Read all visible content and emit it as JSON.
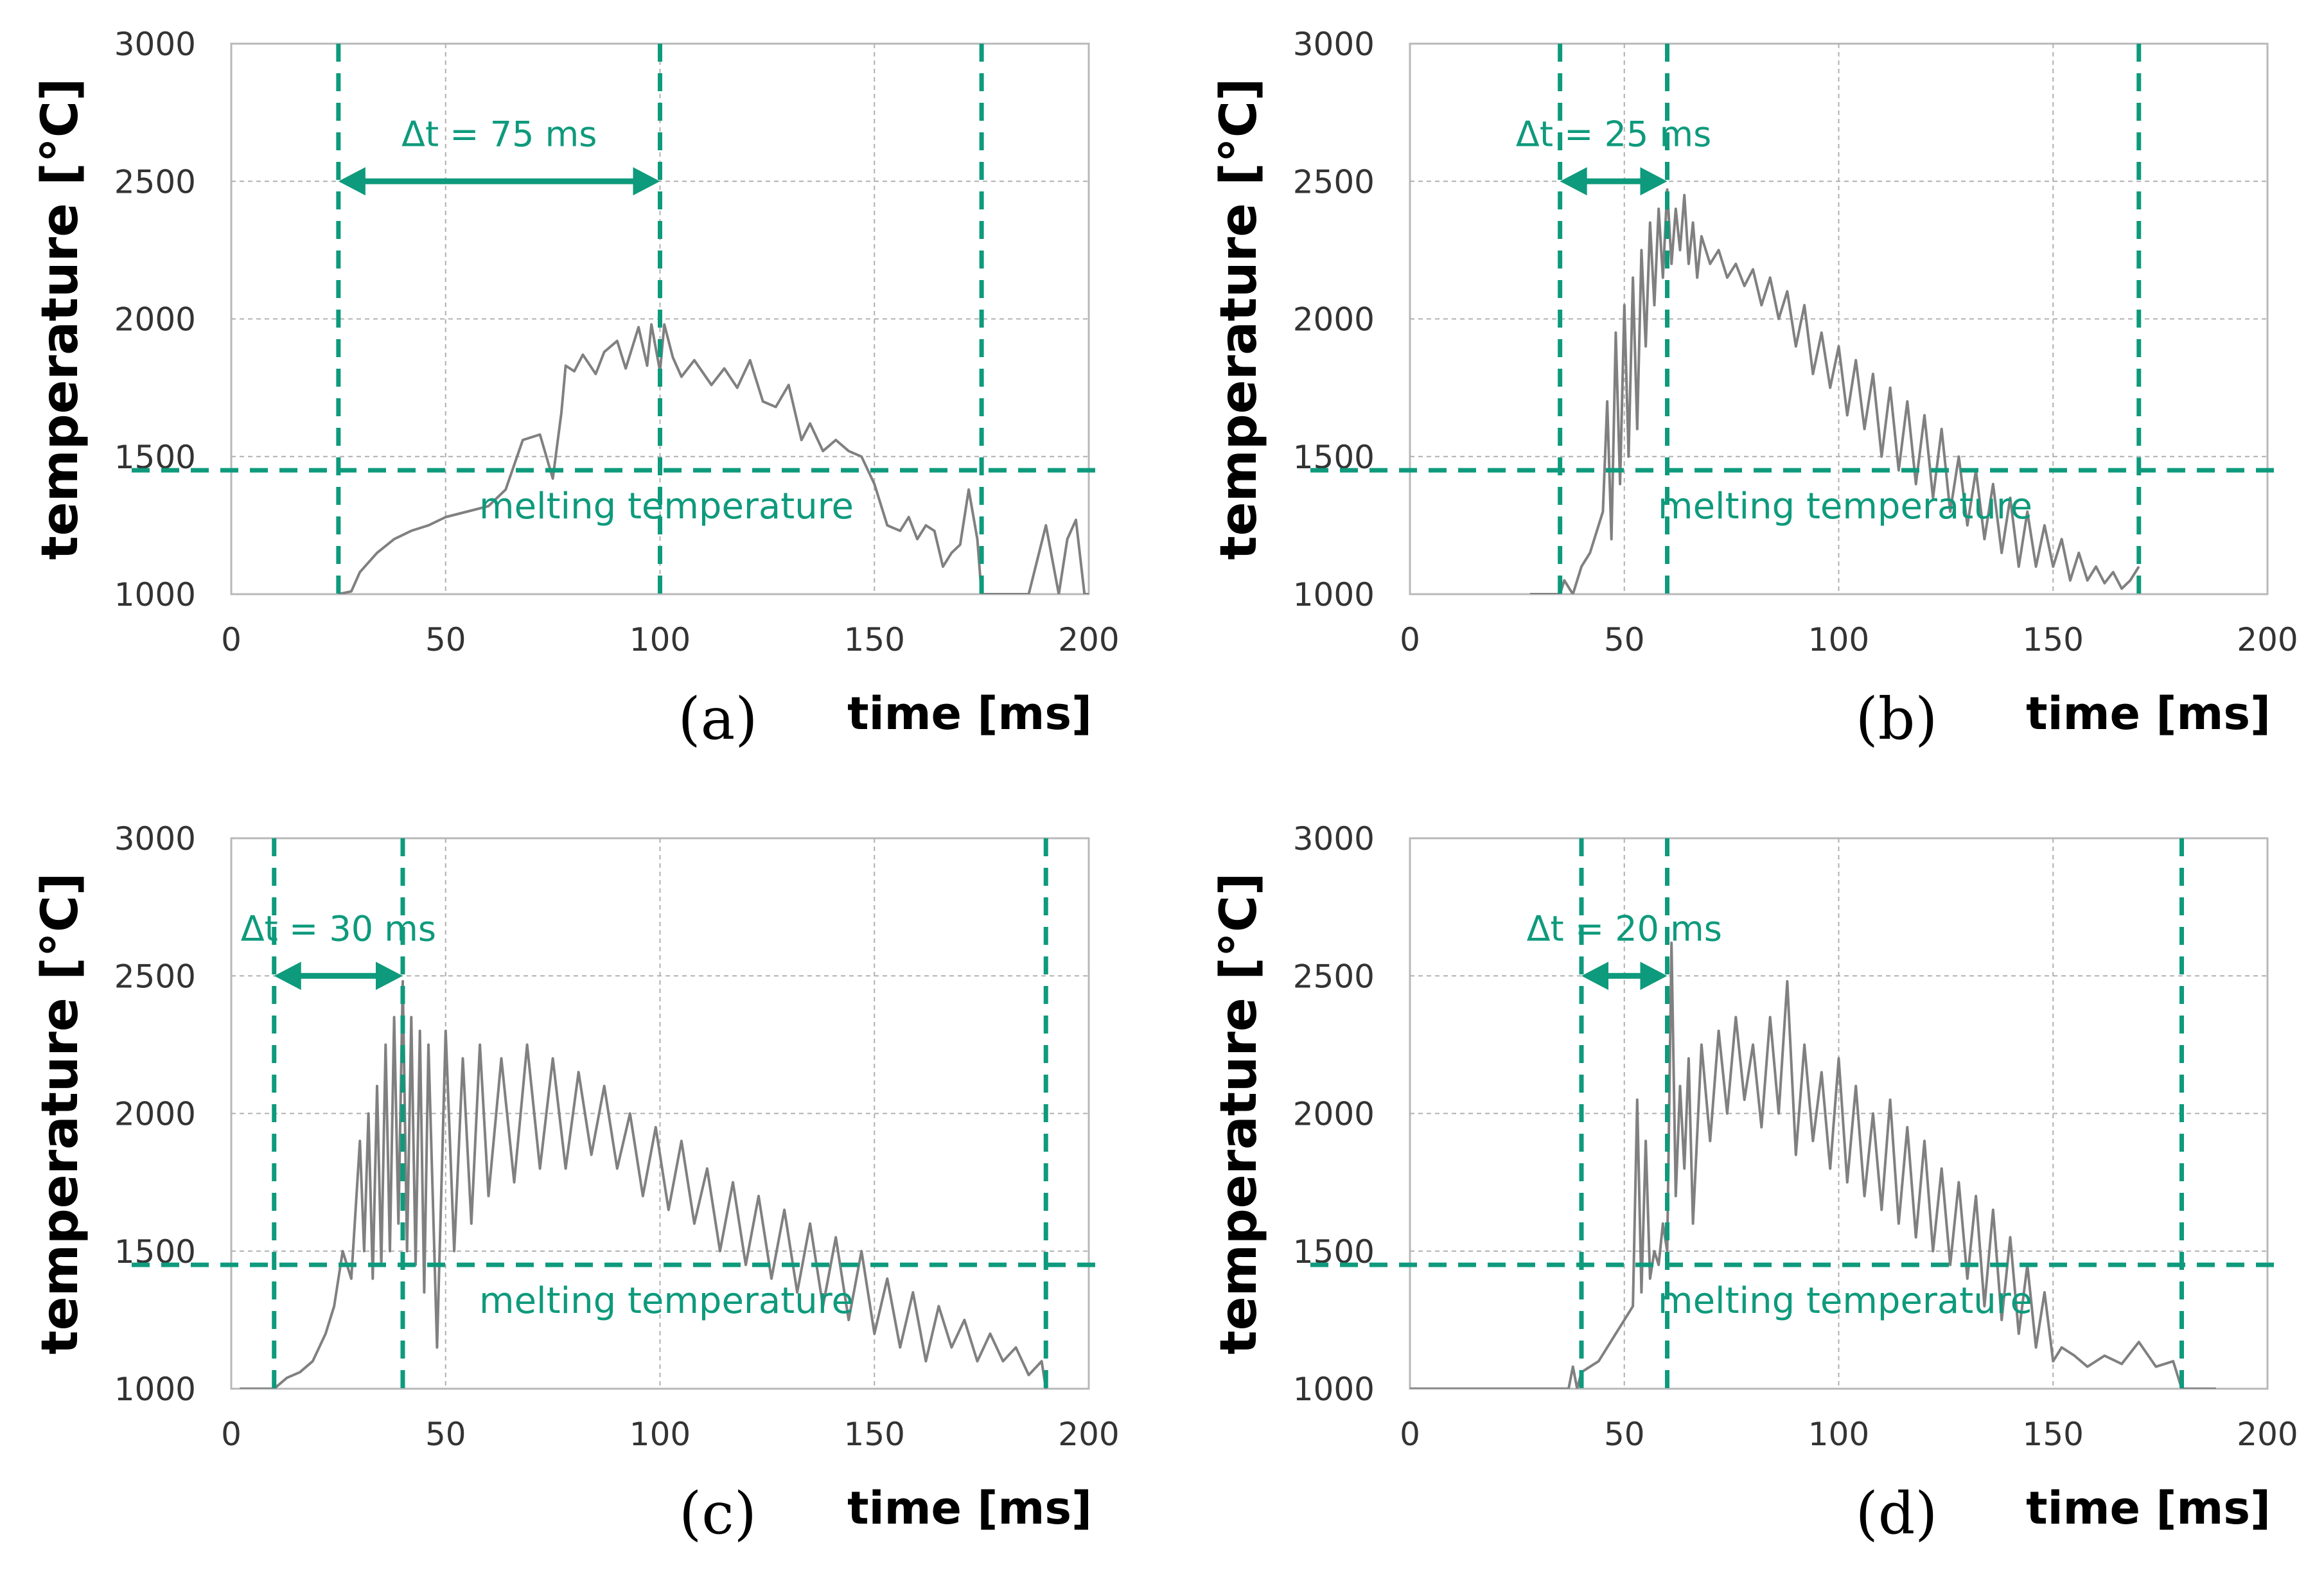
{
  "colors": {
    "accent": "#0e9a7c",
    "series": "#808080",
    "grid": "#b0b0b0",
    "frame": "#b8b8b8"
  },
  "chart_data": [
    {
      "panel": "(a)",
      "type": "line",
      "xlabel": "time [ms]",
      "ylabel": "temperature [°C]",
      "xlim": [
        0,
        200
      ],
      "ylim": [
        1000,
        3000
      ],
      "xticks": [
        "0",
        "50",
        "100",
        "150",
        "200"
      ],
      "yticks": [
        "1000",
        "1500",
        "2000",
        "2500",
        "3000"
      ],
      "grid": true,
      "melting_temperature": 1450,
      "melting_label": "melting temperature",
      "markers_x": [
        25,
        100,
        175
      ],
      "delta": {
        "label": "Δt = 75 ms",
        "from": 25,
        "to": 100,
        "y": 2500
      },
      "series": [
        {
          "name": "temperature",
          "x": [
            25,
            28,
            30,
            34,
            38,
            42,
            46,
            50,
            55,
            60,
            64,
            68,
            72,
            75,
            77,
            78,
            80,
            82,
            85,
            87,
            90,
            92,
            95,
            97,
            98,
            100,
            101,
            103,
            105,
            108,
            112,
            115,
            118,
            121,
            124,
            127,
            130,
            133,
            135,
            138,
            141,
            144,
            147,
            150,
            153,
            156,
            158,
            160,
            162,
            164,
            166,
            168,
            170,
            172,
            174,
            175,
            176,
            178,
            180,
            183,
            186,
            190,
            193,
            195,
            197,
            199,
            200
          ],
          "y": [
            1000,
            1010,
            1080,
            1150,
            1200,
            1230,
            1250,
            1280,
            1300,
            1320,
            1380,
            1560,
            1580,
            1420,
            1660,
            1830,
            1810,
            1870,
            1800,
            1880,
            1920,
            1820,
            1970,
            1830,
            1980,
            1810,
            1980,
            1860,
            1790,
            1850,
            1760,
            1820,
            1750,
            1850,
            1700,
            1680,
            1760,
            1560,
            1620,
            1520,
            1560,
            1520,
            1500,
            1400,
            1250,
            1230,
            1280,
            1200,
            1250,
            1230,
            1100,
            1150,
            1180,
            1380,
            1200,
            1000,
            1000,
            1000,
            1000,
            1000,
            1000,
            1250,
            1000,
            1200,
            1270,
            1000,
            1000
          ]
        }
      ]
    },
    {
      "panel": "(b)",
      "type": "line",
      "xlabel": "time [ms]",
      "ylabel": "temperature [°C]",
      "xlim": [
        0,
        200
      ],
      "ylim": [
        1000,
        3000
      ],
      "xticks": [
        "0",
        "50",
        "100",
        "150",
        "200"
      ],
      "yticks": [
        "1000",
        "1500",
        "2000",
        "2500",
        "3000"
      ],
      "grid": true,
      "melting_temperature": 1450,
      "melting_label": "melting temperature",
      "markers_x": [
        35,
        60,
        170
      ],
      "delta": {
        "label": "Δt = 25 ms",
        "from": 35,
        "to": 60,
        "y": 2500
      },
      "series": [
        {
          "name": "temperature",
          "x": [
            28,
            35,
            36,
            38,
            40,
            42,
            44,
            45,
            46,
            47,
            48,
            49,
            50,
            51,
            52,
            53,
            54,
            55,
            56,
            57,
            58,
            59,
            60,
            61,
            62,
            63,
            64,
            65,
            66,
            67,
            68,
            70,
            72,
            74,
            76,
            78,
            80,
            82,
            84,
            86,
            88,
            90,
            92,
            94,
            96,
            98,
            100,
            102,
            104,
            106,
            108,
            110,
            112,
            114,
            116,
            118,
            120,
            122,
            124,
            126,
            128,
            130,
            132,
            134,
            136,
            138,
            140,
            142,
            144,
            146,
            148,
            150,
            152,
            154,
            156,
            158,
            160,
            162,
            164,
            166,
            168,
            170
          ],
          "y": [
            1000,
            1000,
            1050,
            1000,
            1100,
            1150,
            1250,
            1300,
            1700,
            1200,
            1950,
            1400,
            2050,
            1500,
            2150,
            1600,
            2250,
            1900,
            2350,
            2050,
            2400,
            2150,
            2470,
            2200,
            2400,
            2250,
            2450,
            2200,
            2350,
            2150,
            2300,
            2200,
            2250,
            2150,
            2200,
            2120,
            2180,
            2050,
            2150,
            2000,
            2100,
            1900,
            2050,
            1800,
            1950,
            1750,
            1900,
            1650,
            1850,
            1600,
            1800,
            1500,
            1750,
            1450,
            1700,
            1400,
            1650,
            1350,
            1600,
            1300,
            1500,
            1250,
            1450,
            1200,
            1400,
            1150,
            1350,
            1100,
            1300,
            1100,
            1250,
            1100,
            1200,
            1050,
            1150,
            1050,
            1100,
            1040,
            1080,
            1020,
            1050,
            1100
          ]
        }
      ]
    },
    {
      "panel": "(c)",
      "type": "line",
      "xlabel": "time [ms]",
      "ylabel": "temperature [°C]",
      "xlim": [
        0,
        200
      ],
      "ylim": [
        1000,
        3000
      ],
      "xticks": [
        "0",
        "50",
        "100",
        "150",
        "200"
      ],
      "yticks": [
        "1000",
        "1500",
        "2000",
        "2500",
        "3000"
      ],
      "grid": true,
      "melting_temperature": 1450,
      "melting_label": "melting temperature",
      "markers_x": [
        10,
        40,
        190
      ],
      "delta": {
        "label": "Δt = 30 ms",
        "from": 10,
        "to": 40,
        "y": 2500
      },
      "series": [
        {
          "name": "temperature",
          "x": [
            2,
            8,
            10,
            13,
            16,
            19,
            22,
            24,
            26,
            28,
            30,
            31,
            32,
            33,
            34,
            35,
            36,
            37,
            38,
            39,
            40,
            41,
            42,
            43,
            44,
            45,
            46,
            48,
            50,
            52,
            54,
            56,
            58,
            60,
            63,
            66,
            69,
            72,
            75,
            78,
            81,
            84,
            87,
            90,
            93,
            96,
            99,
            102,
            105,
            108,
            111,
            114,
            117,
            120,
            123,
            126,
            129,
            132,
            135,
            138,
            141,
            144,
            147,
            150,
            153,
            156,
            159,
            162,
            165,
            168,
            171,
            174,
            177,
            180,
            183,
            186,
            189,
            190
          ],
          "y": [
            1000,
            1000,
            1000,
            1040,
            1060,
            1100,
            1200,
            1300,
            1500,
            1400,
            1900,
            1500,
            2000,
            1400,
            2100,
            1450,
            2250,
            1500,
            2350,
            1600,
            2480,
            1500,
            2350,
            1450,
            2300,
            1350,
            2250,
            1150,
            2300,
            1500,
            2200,
            1600,
            2250,
            1700,
            2200,
            1750,
            2250,
            1800,
            2200,
            1800,
            2150,
            1850,
            2100,
            1800,
            2000,
            1700,
            1950,
            1650,
            1900,
            1600,
            1800,
            1500,
            1750,
            1450,
            1700,
            1400,
            1650,
            1350,
            1600,
            1300,
            1550,
            1250,
            1500,
            1200,
            1400,
            1150,
            1350,
            1100,
            1300,
            1150,
            1250,
            1100,
            1200,
            1100,
            1150,
            1050,
            1100,
            1000
          ]
        }
      ]
    },
    {
      "panel": "(d)",
      "type": "line",
      "xlabel": "time [ms]",
      "ylabel": "temperature [°C]",
      "xlim": [
        0,
        200
      ],
      "ylim": [
        1000,
        3000
      ],
      "xticks": [
        "0",
        "50",
        "100",
        "150",
        "200"
      ],
      "yticks": [
        "1000",
        "1500",
        "2000",
        "2500",
        "3000"
      ],
      "grid": true,
      "melting_temperature": 1450,
      "melting_label": "melting temperature",
      "markers_x": [
        40,
        60,
        180
      ],
      "delta": {
        "label": "Δt = 20 ms",
        "from": 40,
        "to": 60,
        "y": 2500
      },
      "series": [
        {
          "name": "temperature",
          "x": [
            0,
            30,
            37,
            38,
            39,
            40,
            42,
            44,
            46,
            48,
            50,
            52,
            53,
            54,
            55,
            56,
            57,
            58,
            59,
            60,
            61,
            62,
            63,
            64,
            65,
            66,
            68,
            70,
            72,
            74,
            76,
            78,
            80,
            82,
            84,
            86,
            88,
            90,
            92,
            94,
            96,
            98,
            100,
            102,
            104,
            106,
            108,
            110,
            112,
            114,
            116,
            118,
            120,
            122,
            124,
            126,
            128,
            130,
            132,
            134,
            136,
            138,
            140,
            142,
            144,
            146,
            148,
            150,
            152,
            155,
            158,
            162,
            166,
            170,
            174,
            178,
            180,
            184,
            188
          ],
          "y": [
            1000,
            1000,
            1000,
            1080,
            1000,
            1060,
            1080,
            1100,
            1150,
            1200,
            1250,
            1300,
            2050,
            1350,
            1900,
            1400,
            1500,
            1450,
            1600,
            1500,
            2620,
            1700,
            2100,
            1800,
            2200,
            1600,
            2250,
            1900,
            2300,
            2000,
            2350,
            2050,
            2250,
            1950,
            2350,
            2000,
            2480,
            1850,
            2250,
            1900,
            2150,
            1800,
            2200,
            1750,
            2100,
            1700,
            2000,
            1650,
            2050,
            1600,
            1950,
            1550,
            1900,
            1500,
            1800,
            1450,
            1750,
            1400,
            1700,
            1300,
            1650,
            1250,
            1550,
            1200,
            1450,
            1150,
            1350,
            1100,
            1150,
            1120,
            1080,
            1120,
            1090,
            1170,
            1080,
            1100,
            1000,
            1000,
            1000
          ]
        }
      ]
    }
  ]
}
